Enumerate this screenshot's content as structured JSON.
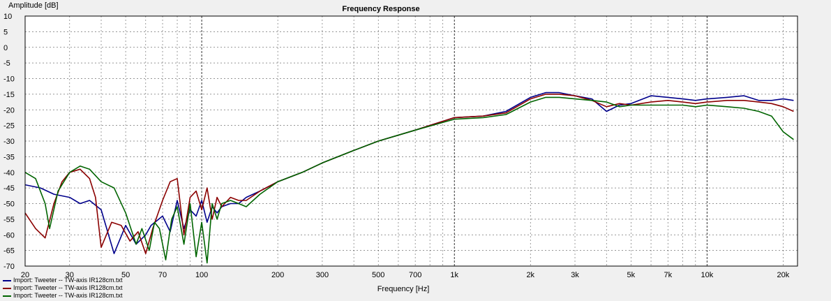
{
  "chart_data": {
    "type": "line",
    "title": "Frequency Response",
    "xlabel": "Frequency [Hz]",
    "ylabel": "Amplitude [dB]",
    "x_scale": "log",
    "xlim": [
      20,
      22800
    ],
    "ylim": [
      -70,
      10
    ],
    "grid": true,
    "legend_position": "bottom-left",
    "x_ticks": [
      20,
      30,
      50,
      70,
      100,
      200,
      300,
      500,
      700,
      1000,
      2000,
      3000,
      5000,
      7000,
      10000,
      20000
    ],
    "x_tick_labels": [
      "20",
      "30",
      "50",
      "70",
      "100",
      "200",
      "300",
      "500",
      "700",
      "1k",
      "2k",
      "3k",
      "5k",
      "7k",
      "10k",
      "20k"
    ],
    "y_ticks": [
      10,
      5,
      0,
      -5,
      -10,
      -15,
      -20,
      -25,
      -30,
      -35,
      -40,
      -45,
      -50,
      -55,
      -60,
      -65,
      -70
    ],
    "series": [
      {
        "name": "Import: Tweeter -- TW-axis IR128cm.txt",
        "color": "#00008b",
        "x": [
          20,
          23,
          26,
          30,
          33,
          36,
          40,
          45,
          50,
          55,
          60,
          63,
          70,
          75,
          80,
          85,
          90,
          95,
          100,
          105,
          110,
          115,
          120,
          130,
          140,
          150,
          170,
          200,
          250,
          300,
          400,
          500,
          700,
          1000,
          1300,
          1600,
          2000,
          2300,
          2600,
          3000,
          3500,
          4000,
          4500,
          5000,
          6000,
          7000,
          8000,
          9000,
          10000,
          12000,
          14000,
          16000,
          18000,
          20000,
          22000
        ],
        "y": [
          -44,
          -45,
          -47,
          -48,
          -50,
          -49,
          -52,
          -66,
          -57,
          -63,
          -60,
          -57,
          -54,
          -59,
          -49,
          -58,
          -52,
          -54,
          -49,
          -56,
          -51,
          -53,
          -51,
          -50,
          -50,
          -48,
          -46,
          -43,
          -40,
          -37,
          -33,
          -30,
          -26.5,
          -22.5,
          -22,
          -20.5,
          -16,
          -14.5,
          -14.5,
          -15.5,
          -16.5,
          -20.5,
          -18.5,
          -18,
          -15.5,
          -16,
          -16.5,
          -17,
          -16.5,
          -16,
          -15.5,
          -17,
          -17,
          -16.5,
          -17
        ]
      },
      {
        "name": "Import: Tweeter -- TW-axis IR128cm.txt",
        "color": "#8b0000",
        "x": [
          20,
          22,
          24,
          26,
          28,
          30,
          33,
          36,
          38,
          40,
          44,
          48,
          52,
          56,
          60,
          64,
          70,
          75,
          80,
          85,
          90,
          95,
          100,
          105,
          110,
          115,
          120,
          130,
          140,
          150,
          170,
          200,
          250,
          300,
          400,
          500,
          700,
          1000,
          1300,
          1600,
          2000,
          2300,
          2600,
          3000,
          3500,
          4000,
          4500,
          5000,
          6000,
          7000,
          8000,
          9000,
          10000,
          12000,
          14000,
          16000,
          18000,
          20000,
          22000
        ],
        "y": [
          -53,
          -58,
          -61,
          -50,
          -43,
          -40,
          -39,
          -42,
          -48,
          -64,
          -56,
          -57,
          -62,
          -59,
          -66,
          -58,
          -49,
          -43,
          -42,
          -60,
          -48,
          -46,
          -52,
          -45,
          -55,
          -48,
          -51,
          -48,
          -49,
          -49,
          -46,
          -43,
          -40,
          -37,
          -33,
          -30,
          -26.5,
          -22.5,
          -22,
          -21,
          -16.5,
          -15,
          -15,
          -15.5,
          -17,
          -19,
          -18,
          -18.5,
          -17.5,
          -17,
          -17.5,
          -18,
          -17.5,
          -17,
          -17,
          -17.5,
          -18,
          -19,
          -20.5
        ]
      },
      {
        "name": "Import: Tweeter -- TW-axis IR128cm.txt",
        "color": "#006400",
        "x": [
          20,
          22,
          24,
          25,
          27,
          30,
          33,
          36,
          40,
          45,
          50,
          55,
          58,
          62,
          65,
          68,
          72,
          76,
          80,
          85,
          90,
          95,
          100,
          105,
          110,
          115,
          120,
          130,
          140,
          150,
          170,
          200,
          250,
          300,
          400,
          500,
          700,
          1000,
          1300,
          1600,
          2000,
          2300,
          2600,
          3000,
          3500,
          4000,
          4500,
          5000,
          6000,
          7000,
          8000,
          9000,
          10000,
          12000,
          14000,
          16000,
          18000,
          20000,
          22000
        ],
        "y": [
          -40,
          -42,
          -50,
          -58,
          -46,
          -40,
          -38,
          -39,
          -43,
          -45,
          -53,
          -63,
          -58,
          -65,
          -56,
          -58,
          -68,
          -55,
          -51,
          -63,
          -50,
          -67,
          -56,
          -69,
          -50,
          -55,
          -50,
          -49,
          -50,
          -51,
          -47,
          -43,
          -40,
          -37,
          -33,
          -30,
          -26.5,
          -23,
          -22.5,
          -21.5,
          -17.5,
          -16,
          -16,
          -16.5,
          -17,
          -17.5,
          -19,
          -18.5,
          -18.5,
          -18.5,
          -18.5,
          -19,
          -18.5,
          -19,
          -19.5,
          -20.5,
          -22,
          -27,
          -29.5
        ]
      }
    ]
  }
}
